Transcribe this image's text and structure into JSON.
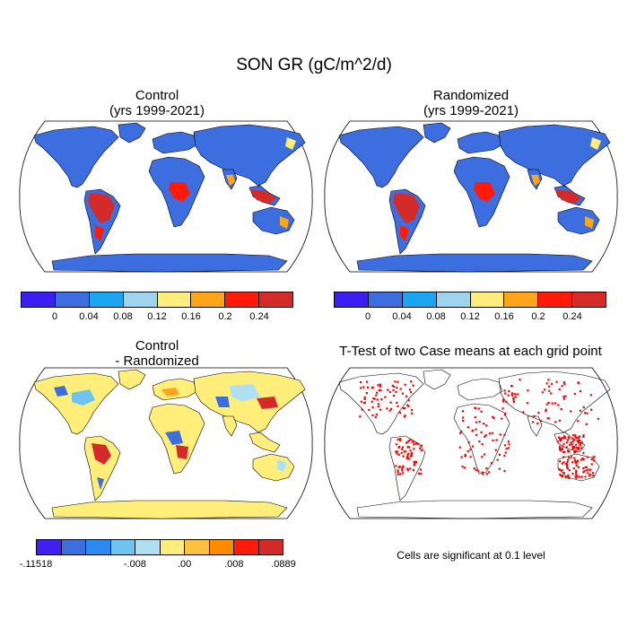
{
  "figure": {
    "title": "SON GR (gC/m^2/d)"
  },
  "panels": [
    {
      "id": "control",
      "title_line1": "Control",
      "title_line2": "(yrs 1999-2021)"
    },
    {
      "id": "randomized",
      "title_line1": "Randomized",
      "title_line2": "(yrs 1999-2021)"
    },
    {
      "id": "difference",
      "title_line1": "Control",
      "title_line2": "- Randomized"
    },
    {
      "id": "ttest",
      "title_line1": "T-Test of two Case means at each grid point",
      "title_line2": ""
    }
  ],
  "colorbar_top": {
    "colors": [
      "#3c1ff0",
      "#3c6ee0",
      "#1aa6f0",
      "#9ed4ee",
      "#ffef7a",
      "#ffa51a",
      "#ff1a0a",
      "#d42a2a"
    ],
    "tick_labels": [
      "0",
      "0.04",
      "0.08",
      "0.12",
      "0.16",
      "0.2",
      "0.24"
    ]
  },
  "colorbar_diff": {
    "colors": [
      "#4020f0",
      "#3c6ee0",
      "#2a8af0",
      "#6ec4f0",
      "#aee0f4",
      "#ffef7a",
      "#ffc040",
      "#ff8c00",
      "#ff1a0a",
      "#d42a2a"
    ],
    "tick_labels": [
      ".11518",
      "-.008",
      ".00",
      ".008",
      ".0889"
    ],
    "tick_label_first_prefix": "-"
  },
  "significance_note": "Cells are significant at 0.1 level",
  "map_colors": {
    "land_mean": "#3c6ee0",
    "tropics_high": "#d42a2a",
    "tropics_mid": "#ff1a0a",
    "warm": "#ffa51a",
    "yellow": "#ffef7a",
    "antarctica_mean": "#3c6ee0",
    "diff_base": "#ffef7a",
    "significant": "#ff0000"
  }
}
